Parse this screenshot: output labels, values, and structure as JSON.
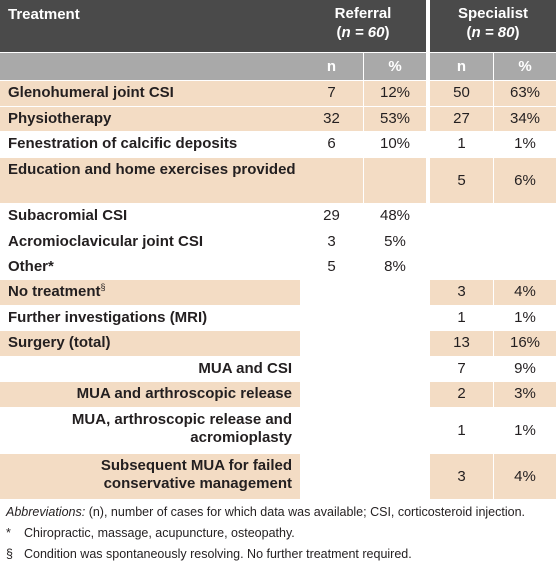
{
  "header": {
    "treatment": "Treatment",
    "referral": {
      "title": "Referral",
      "n_label": "n = 60"
    },
    "specialist": {
      "title": "Specialist",
      "n_label": "n = 80"
    },
    "col_n": "n",
    "col_pct": "%"
  },
  "rows": [
    {
      "label": "Glenohumeral joint CSI",
      "ref_n": "7",
      "ref_pct": "12%",
      "spec_n": "50",
      "spec_pct": "63%"
    },
    {
      "label": "Physiotherapy",
      "ref_n": "32",
      "ref_pct": "53%",
      "spec_n": "27",
      "spec_pct": "34%"
    },
    {
      "label": "Fenestration of calcific deposits",
      "ref_n": "6",
      "ref_pct": "10%",
      "spec_n": "1",
      "spec_pct": "1%"
    },
    {
      "label": "Education and home exercises provided",
      "ref_n": "",
      "ref_pct": "",
      "spec_n": "5",
      "spec_pct": "6%"
    },
    {
      "label": "Subacromial CSI",
      "ref_n": "29",
      "ref_pct": "48%",
      "spec_n": "",
      "spec_pct": ""
    },
    {
      "label": "Acromioclavicular joint CSI",
      "ref_n": "3",
      "ref_pct": "5%",
      "spec_n": "",
      "spec_pct": ""
    },
    {
      "label": "Other",
      "label_mark": "*",
      "ref_n": "5",
      "ref_pct": "8%",
      "spec_n": "",
      "spec_pct": ""
    },
    {
      "label": "No treatment",
      "label_mark": "§",
      "ref_n": "",
      "ref_pct": "",
      "spec_n": "3",
      "spec_pct": "4%"
    },
    {
      "label": "Further investigations (MRI)",
      "ref_n": "",
      "ref_pct": "",
      "spec_n": "1",
      "spec_pct": "1%"
    },
    {
      "label": "Surgery (total)",
      "ref_n": "",
      "ref_pct": "",
      "spec_n": "13",
      "spec_pct": "16%"
    },
    {
      "label": "MUA and CSI",
      "ref_n": "",
      "ref_pct": "",
      "spec_n": "7",
      "spec_pct": "9%"
    },
    {
      "label": "MUA and arthroscopic release",
      "ref_n": "",
      "ref_pct": "",
      "spec_n": "2",
      "spec_pct": "3%"
    },
    {
      "label": "MUA, arthroscopic release and acromioplasty",
      "ref_n": "",
      "ref_pct": "",
      "spec_n": "1",
      "spec_pct": "1%"
    },
    {
      "label": "Subsequent MUA for failed conservative management",
      "ref_n": "",
      "ref_pct": "",
      "spec_n": "3",
      "spec_pct": "4%"
    }
  ],
  "footnotes": {
    "abbrev_label": "Abbreviations:",
    "abbrev_text": " (n), number of cases for which data was available; CSI, corticosteroid injection.",
    "star_mark": "*",
    "star_text": "Chiropractic, massage, acupuncture, osteopathy.",
    "sect_mark": "§",
    "sect_text": "Condition was spontaneously resolving. No further treatment required."
  }
}
